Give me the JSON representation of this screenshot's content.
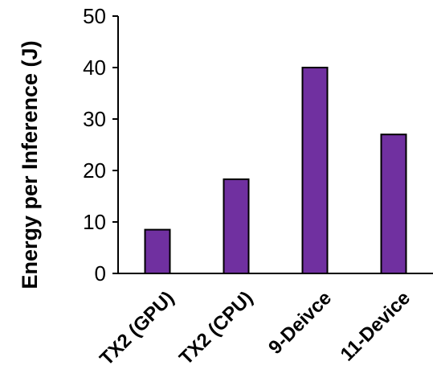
{
  "chart_data": {
    "type": "bar",
    "categories": [
      "TX2 (GPU)",
      "TX2 (CPU)",
      "9-Deivce",
      "11-Device"
    ],
    "values": [
      8.5,
      18.3,
      40,
      27
    ],
    "title": "",
    "xlabel": "",
    "ylabel": "Energy per Inference (J)",
    "ylim": [
      0,
      50
    ],
    "yticks": [
      0,
      10,
      20,
      30,
      40,
      50
    ],
    "grid": false,
    "legend": "none",
    "colors": {
      "bar_fill": "#7030a0",
      "bar_stroke": "#000000",
      "axis": "#000000"
    }
  }
}
